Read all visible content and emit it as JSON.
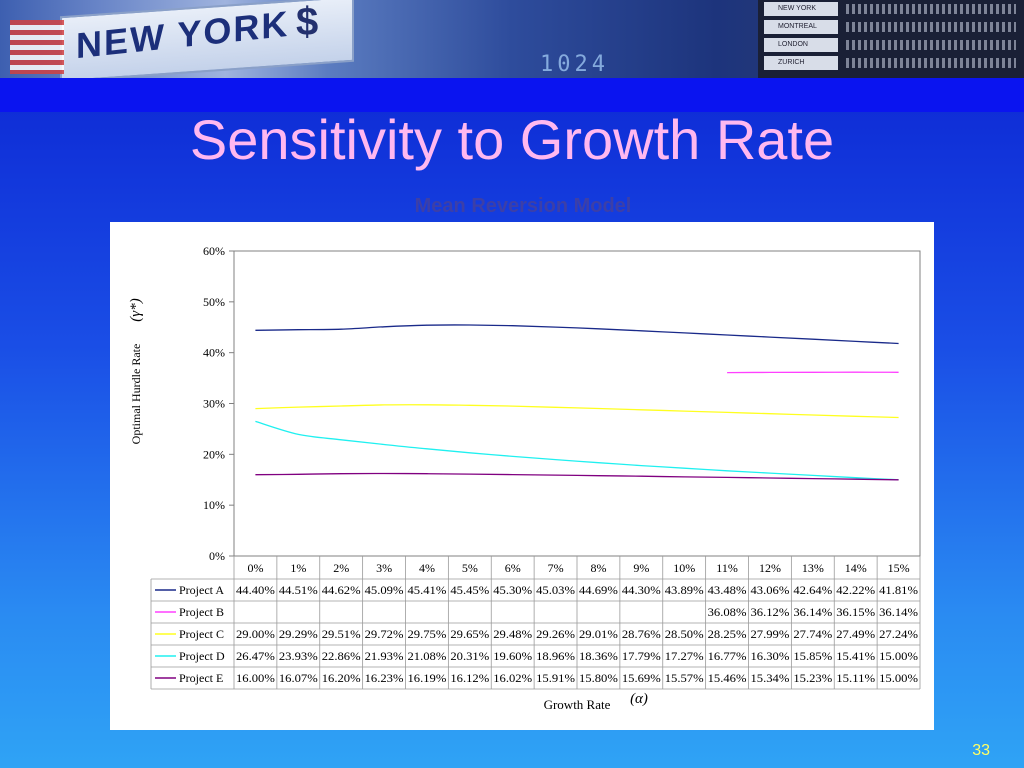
{
  "slide": {
    "banner_city": "NEW YORK",
    "banner_symbol": "$",
    "banner_digits": "1024",
    "board_cities": [
      "NEW YORK",
      "MONTREAL",
      "LONDON",
      "ZURICH"
    ],
    "title": "Sensitivity to Growth Rate",
    "page_number": "33"
  },
  "colors": {
    "title": "#ffb8f0",
    "chart_title": "#3c3fa8",
    "page_number": "#ffff66"
  },
  "chart_data": {
    "type": "line",
    "title": "Mean Reversion Model",
    "ylabel": "Optimal Hurdle Rate",
    "ylabel_symbol": "(γ*)",
    "xlabel": "Growth Rate",
    "xlabel_symbol": "(α)",
    "ylim": [
      0,
      60
    ],
    "yticks": [
      "0%",
      "10%",
      "20%",
      "30%",
      "40%",
      "50%",
      "60%"
    ],
    "categories": [
      "0%",
      "1%",
      "2%",
      "3%",
      "4%",
      "5%",
      "6%",
      "7%",
      "8%",
      "9%",
      "10%",
      "11%",
      "12%",
      "13%",
      "14%",
      "15%"
    ],
    "grid": false,
    "legend": "data-table",
    "series": [
      {
        "name": "Project A",
        "color": "#1a2a8a",
        "values": [
          44.4,
          44.51,
          44.62,
          45.09,
          45.41,
          45.45,
          45.3,
          45.03,
          44.69,
          44.3,
          43.89,
          43.48,
          43.06,
          42.64,
          42.22,
          41.81
        ],
        "labels": [
          "44.40%",
          "44.51%",
          "44.62%",
          "45.09%",
          "45.41%",
          "45.45%",
          "45.30%",
          "45.03%",
          "44.69%",
          "44.30%",
          "43.89%",
          "43.48%",
          "43.06%",
          "42.64%",
          "42.22%",
          "41.81%"
        ]
      },
      {
        "name": "Project B",
        "color": "#ff40ff",
        "values": [
          null,
          null,
          null,
          null,
          null,
          null,
          null,
          null,
          null,
          null,
          null,
          36.08,
          36.12,
          36.14,
          36.15,
          36.14
        ],
        "labels": [
          "",
          "",
          "",
          "",
          "",
          "",
          "",
          "",
          "",
          "",
          "",
          "36.08%",
          "36.12%",
          "36.14%",
          "36.15%",
          "36.14%"
        ]
      },
      {
        "name": "Project C",
        "color": "#ffff20",
        "values": [
          29.0,
          29.29,
          29.51,
          29.72,
          29.75,
          29.65,
          29.48,
          29.26,
          29.01,
          28.76,
          28.5,
          28.25,
          27.99,
          27.74,
          27.49,
          27.24
        ],
        "labels": [
          "29.00%",
          "29.29%",
          "29.51%",
          "29.72%",
          "29.75%",
          "29.65%",
          "29.48%",
          "29.26%",
          "29.01%",
          "28.76%",
          "28.50%",
          "28.25%",
          "27.99%",
          "27.74%",
          "27.49%",
          "27.24%"
        ]
      },
      {
        "name": "Project D",
        "color": "#20f0f0",
        "values": [
          26.47,
          23.93,
          22.86,
          21.93,
          21.08,
          20.31,
          19.6,
          18.96,
          18.36,
          17.79,
          17.27,
          16.77,
          16.3,
          15.85,
          15.41,
          15.0
        ],
        "labels": [
          "26.47%",
          "23.93%",
          "22.86%",
          "21.93%",
          "21.08%",
          "20.31%",
          "19.60%",
          "18.96%",
          "18.36%",
          "17.79%",
          "17.27%",
          "16.77%",
          "16.30%",
          "15.85%",
          "15.41%",
          "15.00%"
        ]
      },
      {
        "name": "Project E",
        "color": "#800080",
        "values": [
          16.0,
          16.07,
          16.2,
          16.23,
          16.19,
          16.12,
          16.02,
          15.91,
          15.8,
          15.69,
          15.57,
          15.46,
          15.34,
          15.23,
          15.11,
          15.0
        ],
        "labels": [
          "16.00%",
          "16.07%",
          "16.20%",
          "16.23%",
          "16.19%",
          "16.12%",
          "16.02%",
          "15.91%",
          "15.80%",
          "15.69%",
          "15.57%",
          "15.46%",
          "15.34%",
          "15.23%",
          "15.11%",
          "15.00%"
        ]
      }
    ]
  }
}
